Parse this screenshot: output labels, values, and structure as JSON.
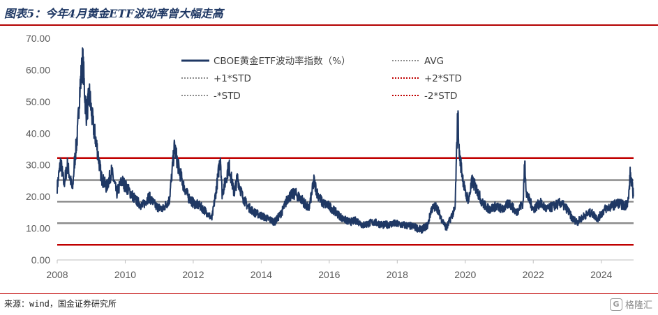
{
  "header": {
    "title": "图表5：今年4月黄金ETF波动率曾大幅走高"
  },
  "footer": {
    "source": "来源：wind，国金证券研究所",
    "brand": "格隆汇",
    "brand_icon": "logo-icon"
  },
  "colors": {
    "series": "#1f3864",
    "avg_std": "#8c8c8c",
    "two_std": "#c00000"
  },
  "chart_data": {
    "type": "line",
    "title": "",
    "xlabel": "",
    "ylabel": "",
    "ylim": [
      0,
      70
    ],
    "xlim": [
      2008,
      2024.95
    ],
    "y_ticks": [
      "0.00",
      "10.00",
      "20.00",
      "30.00",
      "40.00",
      "50.00",
      "60.00",
      "70.00"
    ],
    "x_ticks": [
      "2008",
      "2010",
      "2012",
      "2014",
      "2016",
      "2018",
      "2020",
      "2022",
      "2024"
    ],
    "legend_position": "top",
    "legend": [
      {
        "label": "CBOE黄金ETF波动率指数（%）",
        "style": "solid",
        "color": "#1f3864"
      },
      {
        "label": "AVG",
        "style": "dotted",
        "color": "#8c8c8c"
      },
      {
        "label": "+1*STD",
        "style": "dotted",
        "color": "#8c8c8c"
      },
      {
        "label": "+2*STD",
        "style": "dotted",
        "color": "#c00000"
      },
      {
        "label": "-*STD",
        "style": "dotted",
        "color": "#8c8c8c"
      },
      {
        "label": "-2*STD",
        "style": "dotted",
        "color": "#c00000"
      }
    ],
    "reference_lines": [
      {
        "name": "+2*STD",
        "value": 32.2,
        "color": "#c00000"
      },
      {
        "name": "+1*STD",
        "value": 25.2,
        "color": "#8c8c8c"
      },
      {
        "name": "AVG",
        "value": 18.4,
        "color": "#8c8c8c"
      },
      {
        "name": "-*STD",
        "value": 11.6,
        "color": "#8c8c8c"
      },
      {
        "name": "-2*STD",
        "value": 4.8,
        "color": "#c00000"
      }
    ],
    "series": [
      {
        "name": "CBOE黄金ETF波动率指数（%）",
        "x": [
          2008.0,
          2008.1,
          2008.2,
          2008.3,
          2008.45,
          2008.5,
          2008.6,
          2008.65,
          2008.75,
          2008.85,
          2008.95,
          2009.05,
          2009.15,
          2009.3,
          2009.45,
          2009.6,
          2009.75,
          2009.9,
          2010.1,
          2010.3,
          2010.5,
          2010.7,
          2010.9,
          2011.1,
          2011.3,
          2011.45,
          2011.55,
          2011.7,
          2011.85,
          2012.0,
          2012.2,
          2012.4,
          2012.55,
          2012.7,
          2012.8,
          2012.85,
          2012.95,
          2013.05,
          2013.2,
          2013.3,
          2013.45,
          2013.6,
          2013.8,
          2014.0,
          2014.2,
          2014.4,
          2014.6,
          2014.8,
          2015.0,
          2015.2,
          2015.4,
          2015.55,
          2015.65,
          2015.8,
          2016.0,
          2016.2,
          2016.4,
          2016.6,
          2016.8,
          2017.0,
          2017.3,
          2017.6,
          2017.9,
          2018.2,
          2018.5,
          2018.7,
          2018.9,
          2019.0,
          2019.15,
          2019.3,
          2019.45,
          2019.6,
          2019.7,
          2019.78,
          2019.82,
          2019.9,
          2020.0,
          2020.1,
          2020.2,
          2020.35,
          2020.5,
          2020.7,
          2020.9,
          2021.1,
          2021.3,
          2021.5,
          2021.7,
          2021.75,
          2021.8,
          2022.0,
          2022.2,
          2022.4,
          2022.6,
          2022.8,
          2023.0,
          2023.15,
          2023.3,
          2023.5,
          2023.7,
          2023.9,
          2024.1,
          2024.3,
          2024.5,
          2024.7,
          2024.8,
          2024.85,
          2024.9,
          2024.95
        ],
        "values": [
          23,
          31,
          24,
          30,
          22,
          30,
          40,
          52,
          63,
          46,
          52,
          43,
          37,
          26,
          23,
          28,
          21,
          25,
          22,
          19,
          17,
          20,
          17,
          16,
          19,
          36,
          30,
          24,
          20,
          18,
          17,
          15,
          13,
          24,
          33,
          21,
          25,
          30,
          21,
          26,
          20,
          17,
          15,
          14,
          13,
          12,
          15,
          20,
          21,
          19,
          16,
          25,
          21,
          18,
          17,
          15,
          13,
          12,
          12.5,
          11,
          12,
          11,
          11.5,
          11,
          10.5,
          9.5,
          11,
          16,
          17,
          13,
          10,
          14,
          16,
          48,
          34,
          28,
          21,
          19,
          25,
          22,
          18,
          16,
          17,
          16,
          18,
          15,
          18,
          31,
          21,
          16,
          18,
          16,
          17,
          18,
          16,
          13,
          12,
          14,
          15,
          13,
          16,
          17,
          18,
          17,
          19,
          27,
          24,
          20
        ]
      }
    ]
  }
}
